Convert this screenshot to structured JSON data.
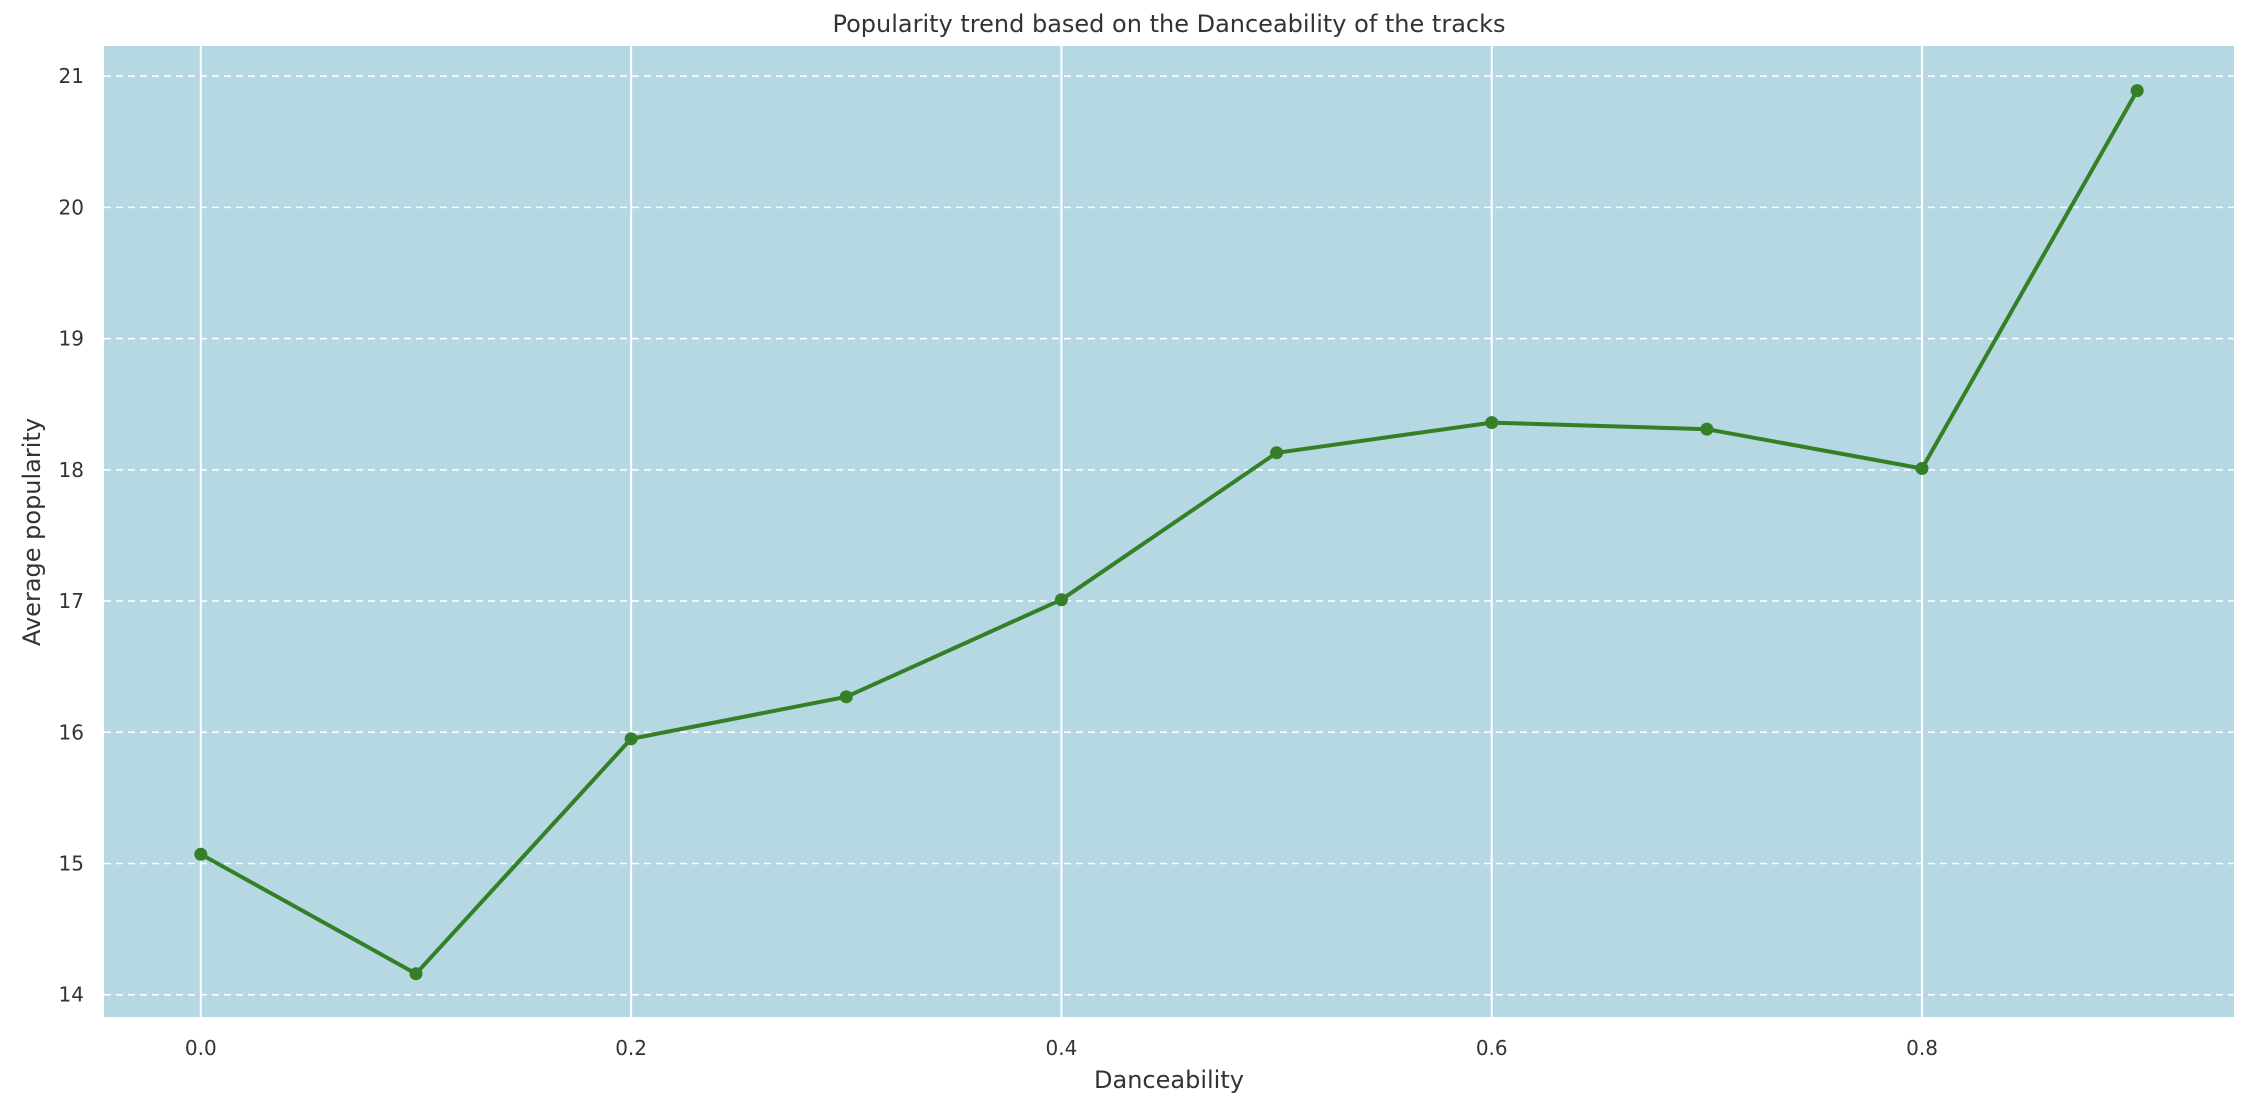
{
  "chart_data": {
    "type": "line",
    "title": "Popularity trend based on the Danceability of the tracks",
    "xlabel": "Danceability",
    "ylabel": "Average popularity",
    "x": [
      0.0,
      0.1,
      0.2,
      0.3,
      0.4,
      0.5,
      0.6,
      0.7,
      0.8,
      0.9
    ],
    "series": [
      {
        "values": [
          15.07,
          14.16,
          15.95,
          16.27,
          17.01,
          18.13,
          18.36,
          18.31,
          18.01,
          20.89
        ]
      }
    ],
    "xlim": [
      -0.045,
      0.945
    ],
    "ylim": [
      13.83,
      21.23
    ],
    "xticks": [
      0.0,
      0.2,
      0.4,
      0.6,
      0.8
    ],
    "xtick_labels": [
      "0.0",
      "0.2",
      "0.4",
      "0.6",
      "0.8"
    ],
    "yticks": [
      14,
      15,
      16,
      17,
      18,
      19,
      20,
      21
    ],
    "ytick_labels": [
      "14",
      "15",
      "16",
      "17",
      "18",
      "19",
      "20",
      "21"
    ],
    "grid": {
      "x": "solid",
      "y": "dashed"
    },
    "colors": {
      "background": "#b5d8e3",
      "line": "#357f27",
      "grid": "#ffffff"
    }
  }
}
